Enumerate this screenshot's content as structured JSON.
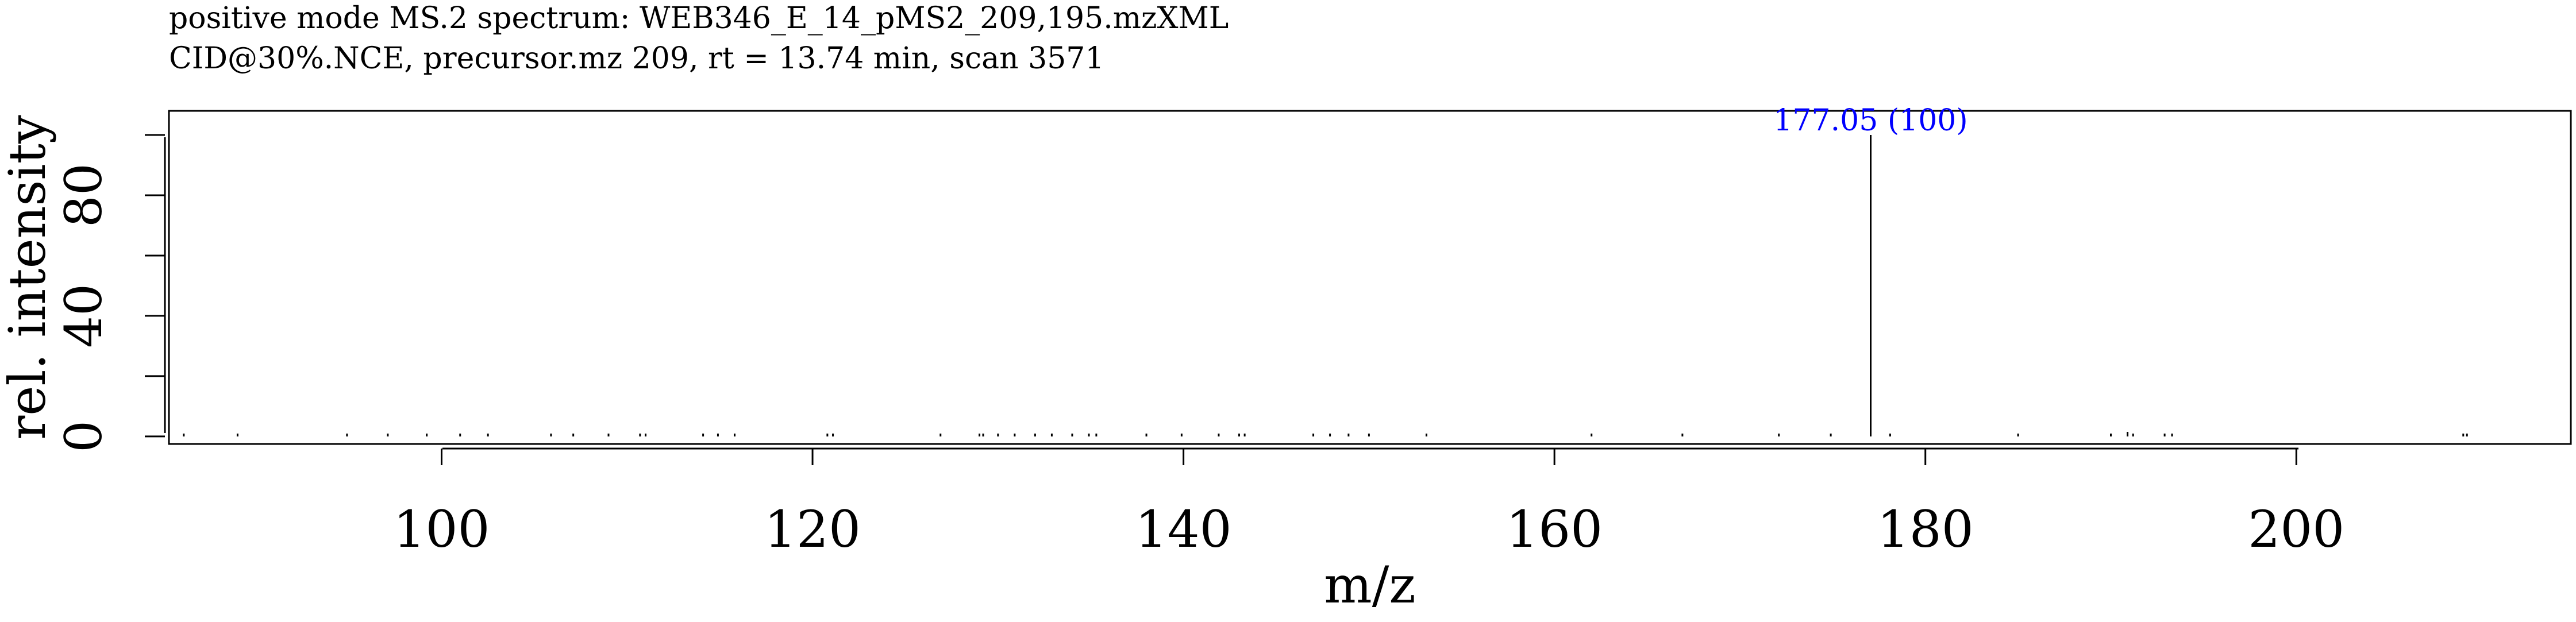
{
  "chart_data": {
    "type": "bar",
    "title": "positive mode MS.2 spectrum: WEB346_E_14_pMS2_209,195.mzXML",
    "subtitle": "CID@30%.NCE, precursor.mz 209, rt = 13.74 min, scan 3571",
    "xlabel": "m/z",
    "ylabel": "rel. intensity",
    "xlim": [
      85.3,
      214.8
    ],
    "ylim": [
      -2.5,
      108
    ],
    "x_ticks": [
      100,
      120,
      140,
      160,
      180,
      200
    ],
    "y_ticks": [
      0,
      20,
      40,
      60,
      80,
      100
    ],
    "y_tick_labels": [
      "0",
      "",
      "40",
      "",
      "80",
      ""
    ],
    "peaks": [
      {
        "mz": 86.1,
        "intensity": 0.4
      },
      {
        "mz": 89.0,
        "intensity": 0.4
      },
      {
        "mz": 94.9,
        "intensity": 0.4
      },
      {
        "mz": 97.1,
        "intensity": 0.4
      },
      {
        "mz": 99.2,
        "intensity": 0.4
      },
      {
        "mz": 101.0,
        "intensity": 0.4
      },
      {
        "mz": 102.5,
        "intensity": 0.4
      },
      {
        "mz": 105.9,
        "intensity": 0.4
      },
      {
        "mz": 107.1,
        "intensity": 0.4
      },
      {
        "mz": 109.0,
        "intensity": 0.4
      },
      {
        "mz": 110.7,
        "intensity": 0.5
      },
      {
        "mz": 111.0,
        "intensity": 0.5
      },
      {
        "mz": 114.1,
        "intensity": 0.4
      },
      {
        "mz": 114.9,
        "intensity": 0.4
      },
      {
        "mz": 115.8,
        "intensity": 0.4
      },
      {
        "mz": 120.8,
        "intensity": 0.5
      },
      {
        "mz": 121.1,
        "intensity": 0.4
      },
      {
        "mz": 126.9,
        "intensity": 0.4
      },
      {
        "mz": 129.0,
        "intensity": 0.8
      },
      {
        "mz": 129.2,
        "intensity": 0.6
      },
      {
        "mz": 130.0,
        "intensity": 0.6
      },
      {
        "mz": 130.9,
        "intensity": 0.4
      },
      {
        "mz": 132.0,
        "intensity": 0.4
      },
      {
        "mz": 132.9,
        "intensity": 0.5
      },
      {
        "mz": 134.0,
        "intensity": 0.4
      },
      {
        "mz": 134.9,
        "intensity": 0.6
      },
      {
        "mz": 135.3,
        "intensity": 0.5
      },
      {
        "mz": 138.0,
        "intensity": 0.4
      },
      {
        "mz": 139.9,
        "intensity": 0.4
      },
      {
        "mz": 141.9,
        "intensity": 0.4
      },
      {
        "mz": 143.0,
        "intensity": 0.5
      },
      {
        "mz": 143.3,
        "intensity": 0.6
      },
      {
        "mz": 147.0,
        "intensity": 0.7
      },
      {
        "mz": 147.9,
        "intensity": 0.6
      },
      {
        "mz": 148.9,
        "intensity": 0.6
      },
      {
        "mz": 150.0,
        "intensity": 0.4
      },
      {
        "mz": 153.1,
        "intensity": 0.4
      },
      {
        "mz": 162.0,
        "intensity": 0.4
      },
      {
        "mz": 166.9,
        "intensity": 0.9
      },
      {
        "mz": 172.1,
        "intensity": 0.4
      },
      {
        "mz": 174.9,
        "intensity": 0.4
      },
      {
        "mz": 177.05,
        "intensity": 100
      },
      {
        "mz": 178.1,
        "intensity": 0.6
      },
      {
        "mz": 185.0,
        "intensity": 0.4
      },
      {
        "mz": 190.0,
        "intensity": 0.7
      },
      {
        "mz": 190.9,
        "intensity": 1.5
      },
      {
        "mz": 191.2,
        "intensity": 0.5
      },
      {
        "mz": 192.9,
        "intensity": 0.8
      },
      {
        "mz": 193.3,
        "intensity": 0.6
      },
      {
        "mz": 209.0,
        "intensity": 0.5
      },
      {
        "mz": 209.2,
        "intensity": 0.4
      }
    ],
    "annotations": [
      {
        "mz": 177.05,
        "intensity": 100,
        "text": "177.05 (100)",
        "color": "#0000ff"
      }
    ],
    "grid": false,
    "bar_color": "#000000"
  }
}
